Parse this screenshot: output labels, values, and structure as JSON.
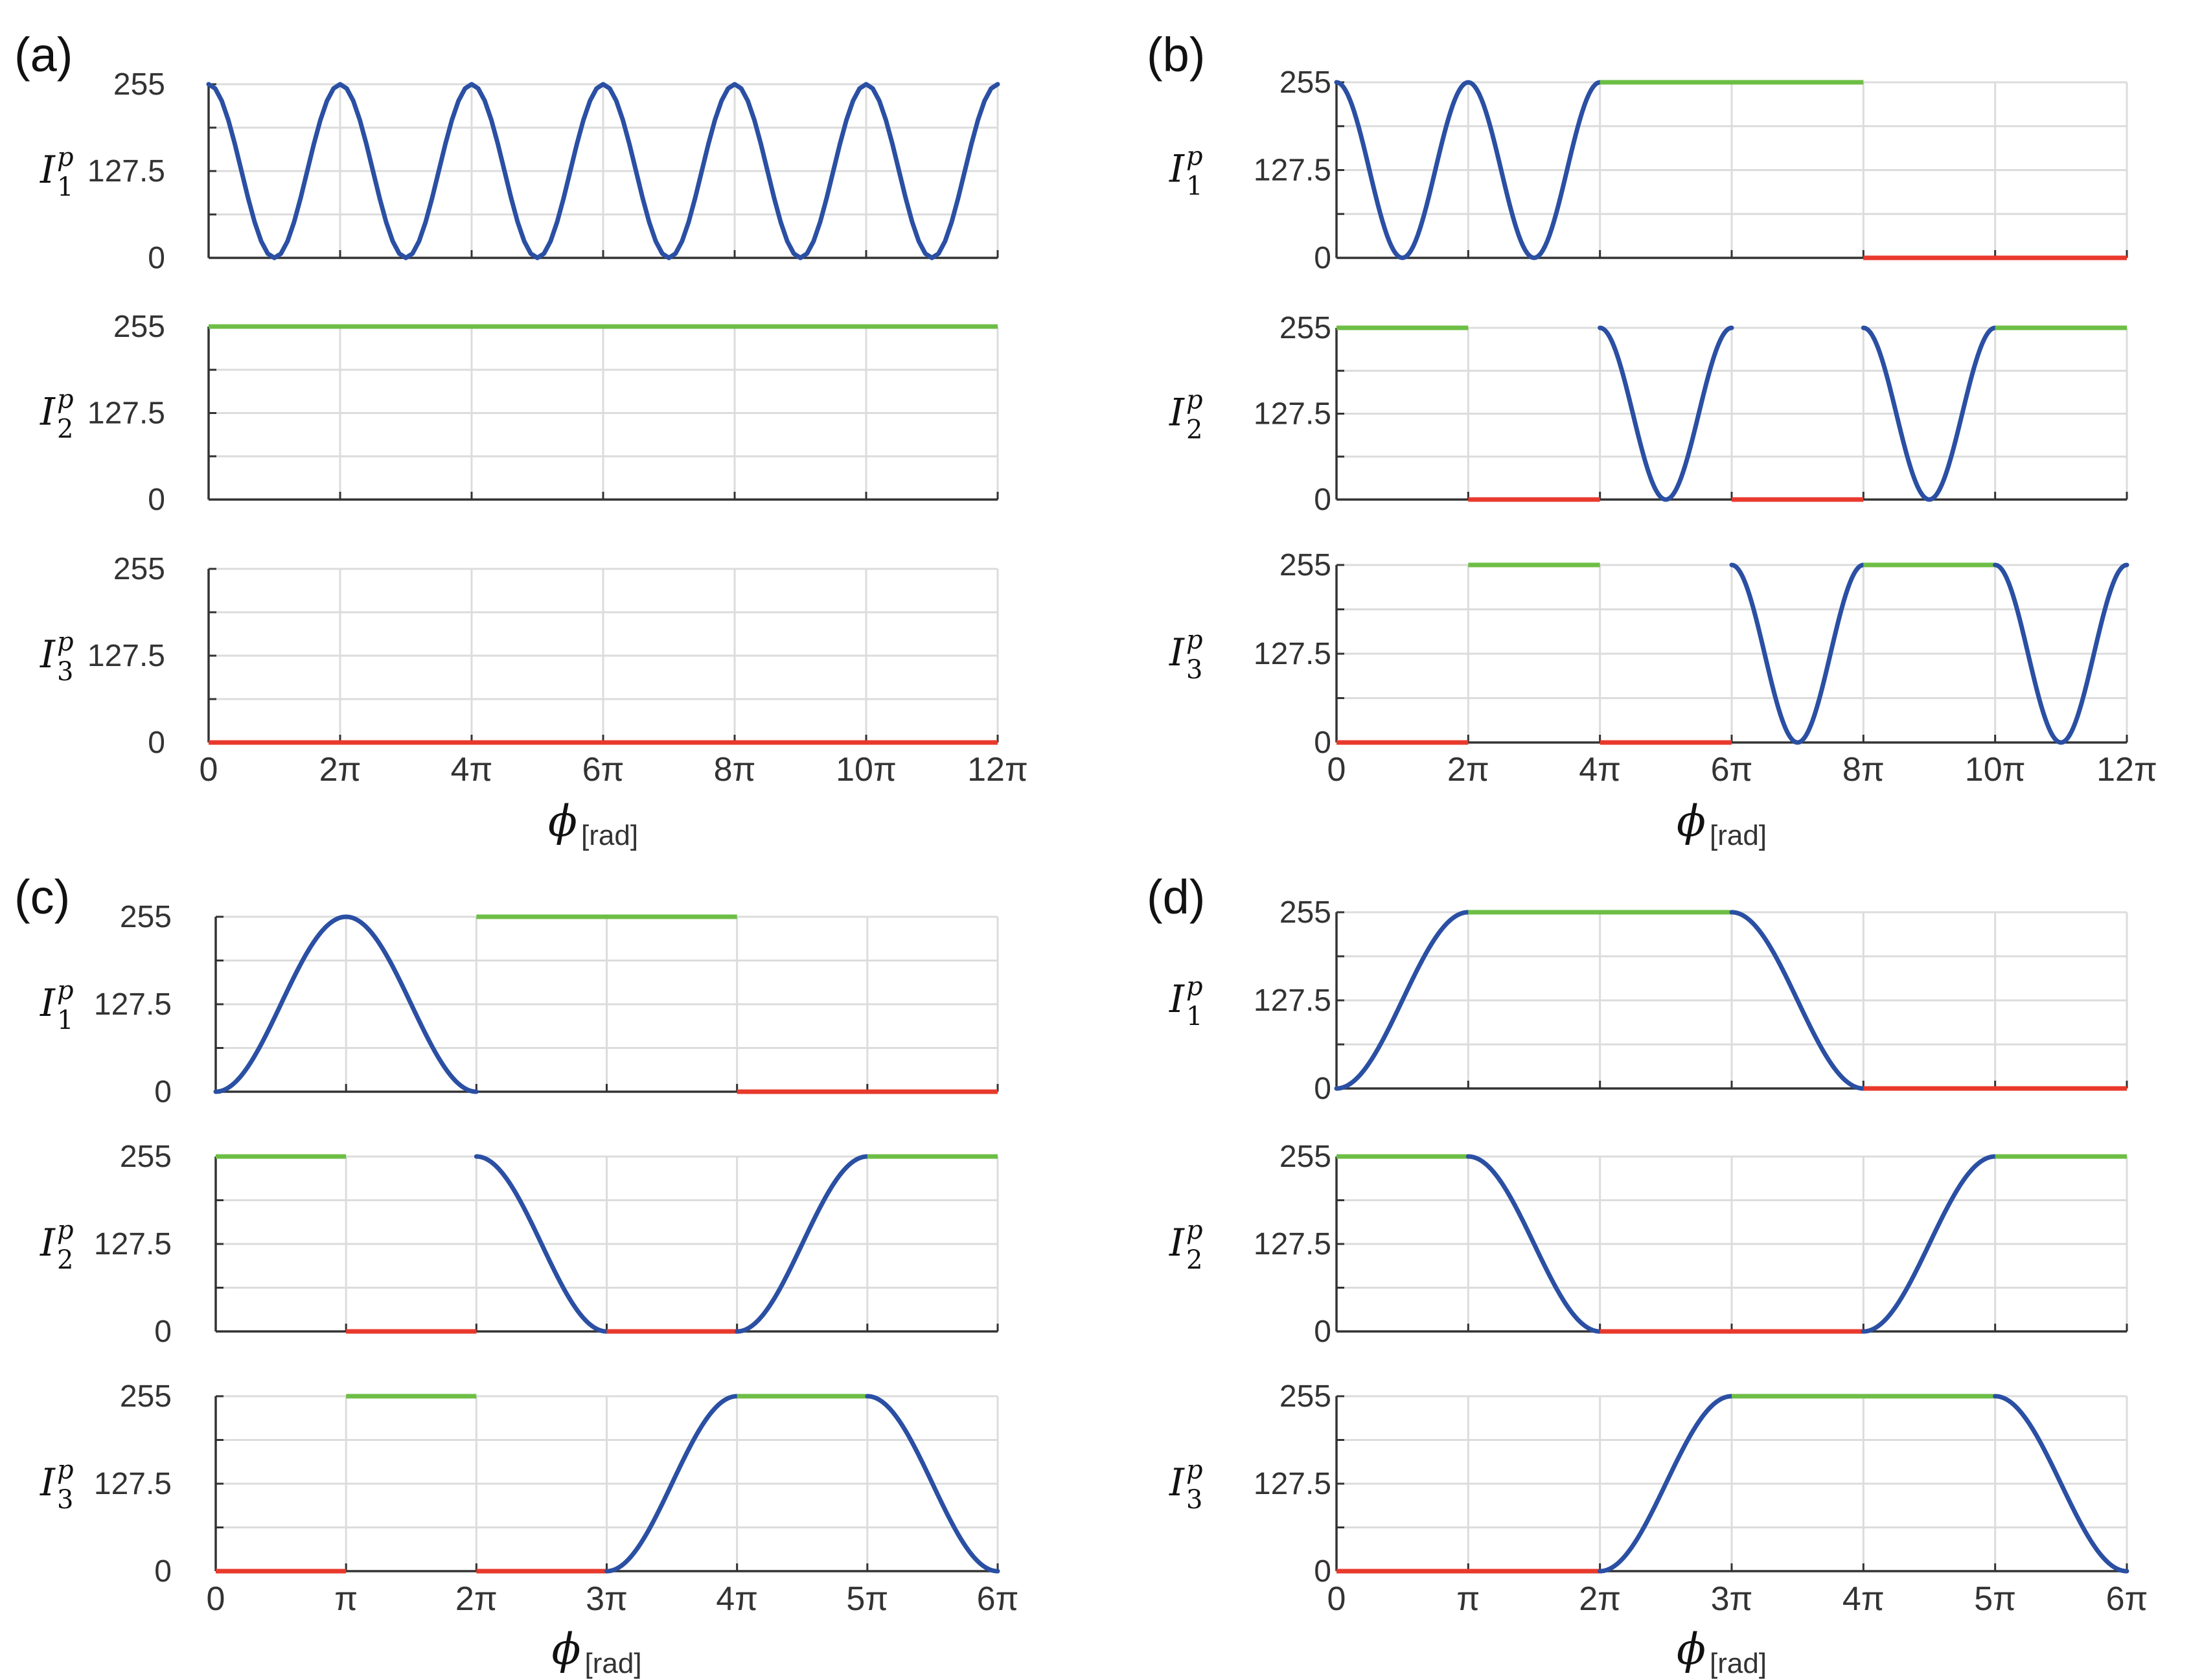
{
  "colors": {
    "curve": "#2a4fa3",
    "high": "#6dbe45",
    "low": "#e8392c",
    "grid": "#dcdcdc",
    "axis": "#333333"
  },
  "shared": {
    "y_ticks": [
      "0",
      "127.5",
      "255"
    ],
    "y_values": [
      0,
      127.5,
      255
    ],
    "ylim": [
      0,
      255
    ],
    "xlabel_symbol": "ϕ",
    "xlabel_unit": "[rad]",
    "ylabel_symbol": "I",
    "ylabel_superscript": "p",
    "row_subscripts": [
      "1",
      "2",
      "3"
    ]
  },
  "chart_data": [
    {
      "type": "line",
      "label": "(a)",
      "xlim_pi": [
        0,
        12
      ],
      "x_ticks": [
        0,
        2,
        4,
        6,
        8,
        10,
        12
      ],
      "x_tick_labels": [
        "0",
        "2π",
        "4π",
        "6π",
        "8π",
        "10π",
        "12π"
      ],
      "series": [
        {
          "name": "I1p",
          "segments": [
            {
              "kind": "cos",
              "from": 0,
              "to": 12
            }
          ]
        },
        {
          "name": "I2p",
          "segments": [
            {
              "kind": "high",
              "from": 0,
              "to": 12
            }
          ]
        },
        {
          "name": "I3p",
          "segments": [
            {
              "kind": "low",
              "from": 0,
              "to": 12
            }
          ]
        }
      ]
    },
    {
      "type": "line",
      "label": "(b)",
      "xlim_pi": [
        0,
        12
      ],
      "x_ticks": [
        0,
        2,
        4,
        6,
        8,
        10,
        12
      ],
      "x_tick_labels": [
        "0",
        "2π",
        "4π",
        "6π",
        "8π",
        "10π",
        "12π"
      ],
      "series": [
        {
          "name": "I1p",
          "segments": [
            {
              "kind": "cos",
              "from": 0,
              "to": 4
            },
            {
              "kind": "high",
              "from": 4,
              "to": 8
            },
            {
              "kind": "low",
              "from": 8,
              "to": 12
            }
          ]
        },
        {
          "name": "I2p",
          "segments": [
            {
              "kind": "high",
              "from": 0,
              "to": 2
            },
            {
              "kind": "low",
              "from": 2,
              "to": 4
            },
            {
              "kind": "cos",
              "from": 4,
              "to": 6
            },
            {
              "kind": "low",
              "from": 6,
              "to": 8
            },
            {
              "kind": "cos",
              "from": 8,
              "to": 10
            },
            {
              "kind": "high",
              "from": 10,
              "to": 12
            }
          ]
        },
        {
          "name": "I3p",
          "segments": [
            {
              "kind": "low",
              "from": 0,
              "to": 2
            },
            {
              "kind": "high",
              "from": 2,
              "to": 4
            },
            {
              "kind": "low",
              "from": 4,
              "to": 6
            },
            {
              "kind": "cos",
              "from": 6,
              "to": 8
            },
            {
              "kind": "high",
              "from": 8,
              "to": 10
            },
            {
              "kind": "cos",
              "from": 10,
              "to": 12
            }
          ]
        }
      ]
    },
    {
      "type": "line",
      "label": "(c)",
      "xlim_pi": [
        0,
        6
      ],
      "x_ticks": [
        0,
        1,
        2,
        3,
        4,
        5,
        6
      ],
      "x_tick_labels": [
        "0",
        "π",
        "2π",
        "3π",
        "4π",
        "5π",
        "6π"
      ],
      "series": [
        {
          "name": "I1p",
          "segments": [
            {
              "kind": "bump",
              "from": 0,
              "to": 2
            },
            {
              "kind": "high",
              "from": 2,
              "to": 4
            },
            {
              "kind": "low",
              "from": 4,
              "to": 6
            }
          ]
        },
        {
          "name": "I2p",
          "segments": [
            {
              "kind": "high",
              "from": 0,
              "to": 1
            },
            {
              "kind": "low",
              "from": 1,
              "to": 2
            },
            {
              "kind": "fall",
              "from": 2,
              "to": 3
            },
            {
              "kind": "low",
              "from": 3,
              "to": 4
            },
            {
              "kind": "rise",
              "from": 4,
              "to": 5
            },
            {
              "kind": "high",
              "from": 5,
              "to": 6
            }
          ]
        },
        {
          "name": "I3p",
          "segments": [
            {
              "kind": "low",
              "from": 0,
              "to": 1
            },
            {
              "kind": "high",
              "from": 1,
              "to": 2
            },
            {
              "kind": "low",
              "from": 2,
              "to": 3
            },
            {
              "kind": "rise",
              "from": 3,
              "to": 4
            },
            {
              "kind": "high",
              "from": 4,
              "to": 5
            },
            {
              "kind": "fall",
              "from": 5,
              "to": 6
            }
          ]
        }
      ]
    },
    {
      "type": "line",
      "label": "(d)",
      "xlim_pi": [
        0,
        6
      ],
      "x_ticks": [
        0,
        1,
        2,
        3,
        4,
        5,
        6
      ],
      "x_tick_labels": [
        "0",
        "π",
        "2π",
        "3π",
        "4π",
        "5π",
        "6π"
      ],
      "series": [
        {
          "name": "I1p",
          "segments": [
            {
              "kind": "rise",
              "from": 0,
              "to": 1
            },
            {
              "kind": "high",
              "from": 1,
              "to": 3
            },
            {
              "kind": "fall",
              "from": 3,
              "to": 4
            },
            {
              "kind": "low",
              "from": 4,
              "to": 6
            }
          ]
        },
        {
          "name": "I2p",
          "segments": [
            {
              "kind": "high",
              "from": 0,
              "to": 1
            },
            {
              "kind": "fall",
              "from": 1,
              "to": 2
            },
            {
              "kind": "low",
              "from": 2,
              "to": 4
            },
            {
              "kind": "rise",
              "from": 4,
              "to": 5
            },
            {
              "kind": "high",
              "from": 5,
              "to": 6
            }
          ]
        },
        {
          "name": "I3p",
          "segments": [
            {
              "kind": "low",
              "from": 0,
              "to": 2
            },
            {
              "kind": "rise",
              "from": 2,
              "to": 3
            },
            {
              "kind": "high",
              "from": 3,
              "to": 5
            },
            {
              "kind": "fall",
              "from": 5,
              "to": 6
            }
          ]
        }
      ]
    }
  ]
}
